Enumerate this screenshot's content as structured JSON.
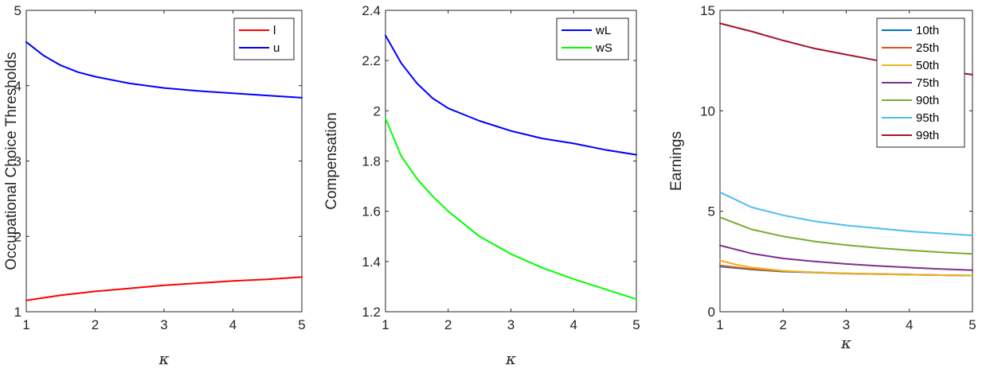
{
  "chart_data": [
    {
      "type": "line",
      "ylabel": "Occupational Choice Thresholds",
      "xlabel": "κ",
      "xlim": [
        1,
        5
      ],
      "ylim": [
        1,
        5
      ],
      "xticks": [
        "1",
        "2",
        "3",
        "4",
        "5"
      ],
      "yticks": [
        "1",
        "2",
        "3",
        "4",
        "5"
      ],
      "legend": "top-right",
      "series": [
        {
          "name": "l",
          "color": "#ff0000",
          "x": [
            1,
            1.5,
            2,
            2.5,
            3,
            3.5,
            4,
            4.5,
            5
          ],
          "y": [
            1.15,
            1.22,
            1.27,
            1.31,
            1.35,
            1.38,
            1.41,
            1.43,
            1.46
          ]
        },
        {
          "name": "u",
          "color": "#0000ff",
          "x": [
            1,
            1.25,
            1.5,
            1.75,
            2,
            2.5,
            3,
            3.5,
            4,
            4.5,
            5
          ],
          "y": [
            4.58,
            4.4,
            4.27,
            4.18,
            4.12,
            4.03,
            3.97,
            3.93,
            3.9,
            3.87,
            3.84
          ]
        }
      ]
    },
    {
      "type": "line",
      "ylabel": "Compensation",
      "xlabel": "κ",
      "xlim": [
        1,
        5
      ],
      "ylim": [
        1.2,
        2.4
      ],
      "xticks": [
        "1",
        "2",
        "3",
        "4",
        "5"
      ],
      "yticks": [
        "1.2",
        "1.4",
        "1.6",
        "1.8",
        "2",
        "2.2",
        "2.4"
      ],
      "legend": "top-right",
      "series": [
        {
          "name": "wL",
          "color": "#0000ff",
          "x": [
            1,
            1.25,
            1.5,
            1.75,
            2,
            2.5,
            3,
            3.5,
            4,
            4.5,
            5
          ],
          "y": [
            2.3,
            2.19,
            2.11,
            2.05,
            2.01,
            1.96,
            1.92,
            1.89,
            1.87,
            1.845,
            1.825
          ]
        },
        {
          "name": "wS",
          "color": "#00ff00",
          "x": [
            1,
            1.25,
            1.5,
            1.75,
            2,
            2.5,
            3,
            3.5,
            4,
            4.5,
            5
          ],
          "y": [
            1.97,
            1.82,
            1.73,
            1.66,
            1.6,
            1.5,
            1.43,
            1.375,
            1.33,
            1.29,
            1.25
          ]
        }
      ]
    },
    {
      "type": "line",
      "ylabel": "Earnings",
      "xlabel": "κ",
      "xlim": [
        1,
        5
      ],
      "ylim": [
        0,
        15
      ],
      "xticks": [
        "1",
        "2",
        "3",
        "4",
        "5"
      ],
      "yticks": [
        "0",
        "5",
        "10",
        "15"
      ],
      "legend": "top-right",
      "series": [
        {
          "name": "10th",
          "color": "#0072bd",
          "x": [
            1,
            1.5,
            2,
            2.5,
            3,
            3.5,
            4,
            4.5,
            5
          ],
          "y": [
            2.25,
            2.1,
            2.0,
            1.95,
            1.9,
            1.87,
            1.85,
            1.82,
            1.8
          ]
        },
        {
          "name": "25th",
          "color": "#d95319",
          "x": [
            1,
            1.5,
            2,
            2.5,
            3,
            3.5,
            4,
            4.5,
            5
          ],
          "y": [
            2.3,
            2.12,
            2.02,
            1.96,
            1.91,
            1.88,
            1.85,
            1.82,
            1.8
          ]
        },
        {
          "name": "50th",
          "color": "#edb120",
          "x": [
            1,
            1.25,
            1.5,
            2,
            2.5,
            3,
            3.5,
            4,
            4.5,
            5
          ],
          "y": [
            2.55,
            2.35,
            2.2,
            2.04,
            1.96,
            1.91,
            1.87,
            1.84,
            1.82,
            1.8
          ]
        },
        {
          "name": "75th",
          "color": "#7e2f8e",
          "x": [
            1,
            1.5,
            2,
            2.5,
            3,
            3.5,
            4,
            4.5,
            5
          ],
          "y": [
            3.3,
            2.9,
            2.65,
            2.5,
            2.38,
            2.28,
            2.2,
            2.13,
            2.07
          ]
        },
        {
          "name": "90th",
          "color": "#77ac30",
          "x": [
            1,
            1.5,
            2,
            2.5,
            3,
            3.5,
            4,
            4.5,
            5
          ],
          "y": [
            4.7,
            4.1,
            3.75,
            3.5,
            3.32,
            3.18,
            3.06,
            2.96,
            2.88
          ]
        },
        {
          "name": "95th",
          "color": "#4dbeee",
          "x": [
            1,
            1.5,
            2,
            2.5,
            3,
            3.5,
            4,
            4.5,
            5
          ],
          "y": [
            5.95,
            5.2,
            4.8,
            4.5,
            4.3,
            4.15,
            4.0,
            3.9,
            3.8
          ]
        },
        {
          "name": "99th",
          "color": "#a2142f",
          "x": [
            1,
            1.5,
            2,
            2.5,
            3,
            3.5,
            4,
            4.5,
            5
          ],
          "y": [
            14.35,
            13.95,
            13.5,
            13.1,
            12.8,
            12.5,
            12.25,
            12.0,
            11.8
          ]
        }
      ]
    }
  ]
}
